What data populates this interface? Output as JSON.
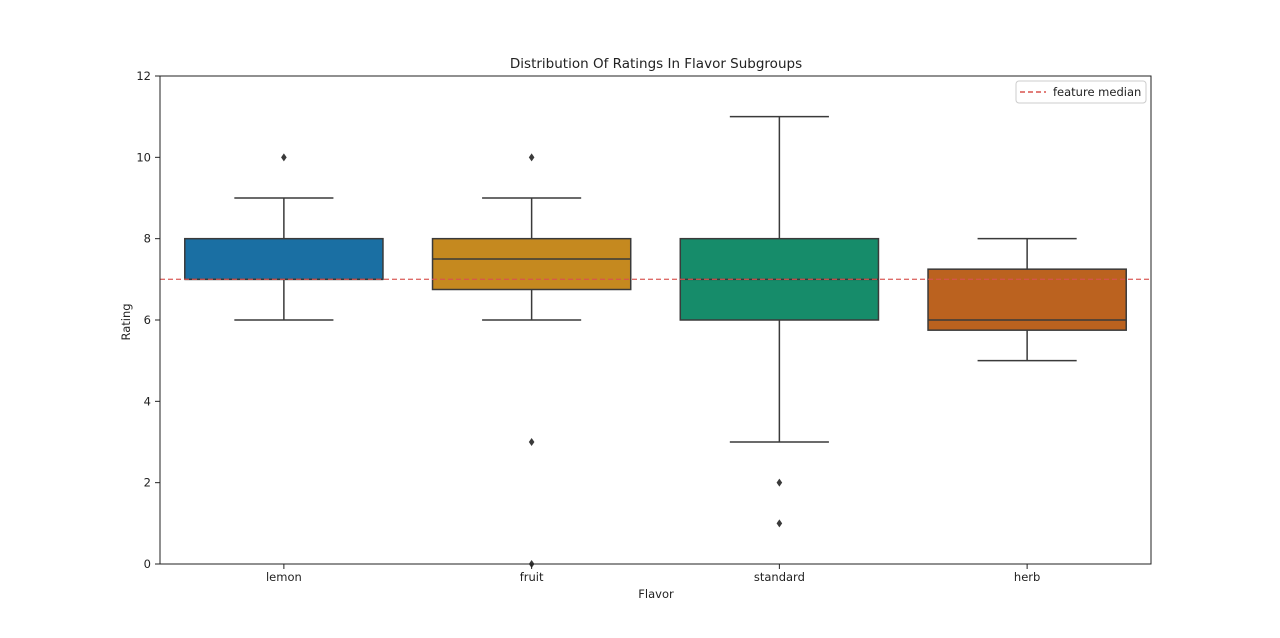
{
  "chart_data": {
    "type": "box",
    "title": "Distribution Of Ratings In Flavor Subgroups",
    "xlabel": "Flavor",
    "ylabel": "Rating",
    "ylim": [
      0,
      12
    ],
    "yticks": [
      0,
      2,
      4,
      6,
      8,
      10,
      12
    ],
    "grid": false,
    "legend_position": "top-right",
    "categories": [
      "lemon",
      "fruit",
      "standard",
      "herb"
    ],
    "boxes": [
      {
        "category": "lemon",
        "whisker_low": 6,
        "q1": 7,
        "median": 7,
        "q3": 8,
        "whisker_high": 9,
        "outliers": [
          10
        ],
        "color": "#1a6fa3"
      },
      {
        "category": "fruit",
        "whisker_low": 6,
        "q1": 6.75,
        "median": 7.5,
        "q3": 8,
        "whisker_high": 9,
        "outliers": [
          10,
          3,
          0
        ],
        "color": "#c5891f"
      },
      {
        "category": "standard",
        "whisker_low": 3,
        "q1": 6,
        "median": 7,
        "q3": 8,
        "whisker_high": 11,
        "outliers": [
          2,
          1
        ],
        "color": "#168c6a"
      },
      {
        "category": "herb",
        "whisker_low": 5,
        "q1": 5.75,
        "median": 6,
        "q3": 7.25,
        "whisker_high": 8,
        "outliers": [],
        "color": "#bb621f"
      }
    ],
    "reference_line": {
      "value": 7,
      "label": "feature median",
      "color": "#d9534f"
    }
  }
}
